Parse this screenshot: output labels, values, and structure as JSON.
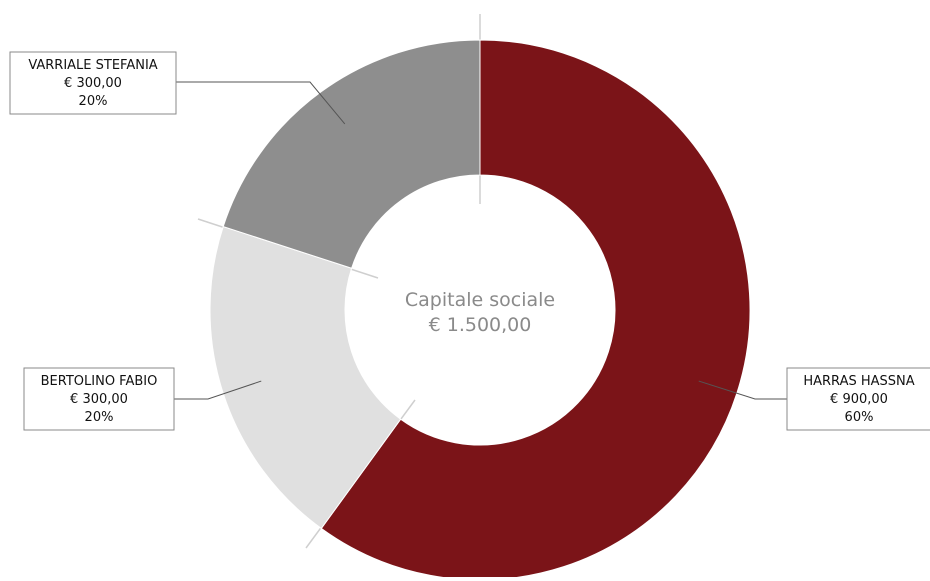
{
  "chart_data": {
    "type": "pie",
    "donut": true,
    "center_label": {
      "title": "Capitale sociale",
      "value": "€ 1.500,00"
    },
    "slices": [
      {
        "name": "HARRAS HASSNA",
        "value": 900,
        "value_label": "€ 900,00",
        "percent_label": "60%",
        "color": "#7b1418"
      },
      {
        "name": "BERTOLINO FABIO",
        "value": 300,
        "value_label": "€ 300,00",
        "percent_label": "20%",
        "color": "#e0e0e0"
      },
      {
        "name": "VARRIALE STEFANIA",
        "value": 300,
        "value_label": "€ 300,00",
        "percent_label": "20%",
        "color": "#8e8e8e"
      }
    ],
    "total": 1500,
    "legend": "none"
  }
}
